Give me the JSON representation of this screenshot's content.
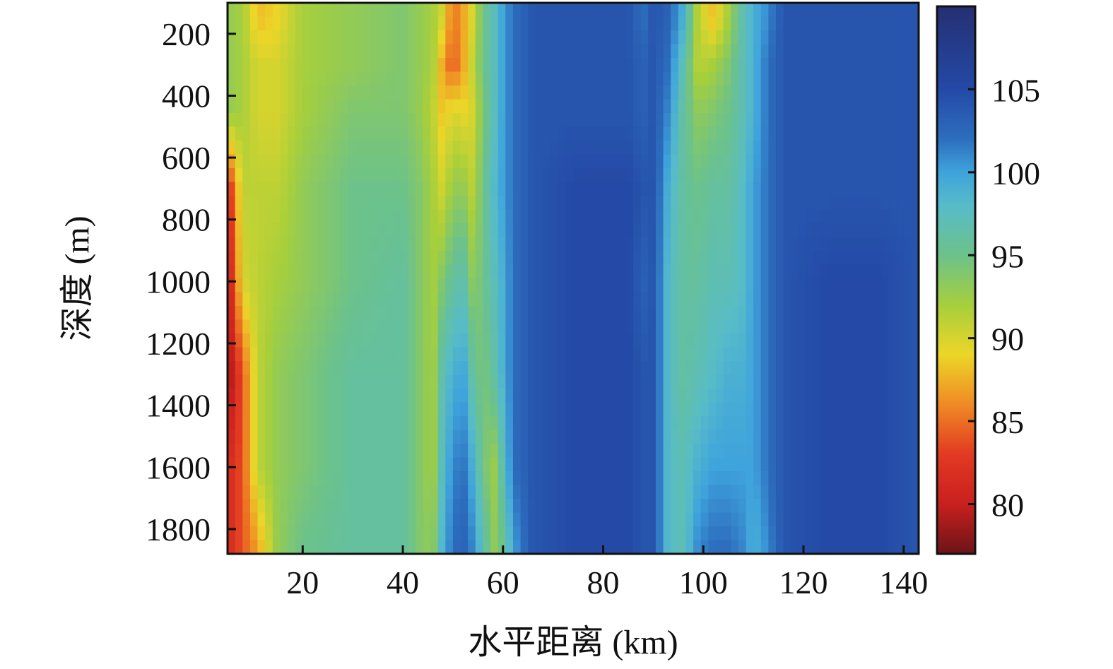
{
  "chart_data": {
    "type": "heatmap",
    "title": "",
    "xlabel": "水平距离 (km)",
    "ylabel": "深度 (m)",
    "xlim": [
      5,
      143
    ],
    "ylim": [
      100,
      1880
    ],
    "y_reversed": true,
    "xticks": [
      20,
      40,
      60,
      80,
      100,
      120,
      140
    ],
    "yticks": [
      200,
      400,
      600,
      800,
      1000,
      1200,
      1400,
      1600,
      1800
    ],
    "colorbar": {
      "min": 77,
      "max": 110,
      "ticks": [
        80,
        85,
        90,
        95,
        100,
        105
      ],
      "colormap": "jet-reversed",
      "stops": [
        {
          "v": 77,
          "c": "#6b1418"
        },
        {
          "v": 80,
          "c": "#c8201e"
        },
        {
          "v": 83,
          "c": "#e23a22"
        },
        {
          "v": 86,
          "c": "#ef8a24"
        },
        {
          "v": 89,
          "c": "#ecd628"
        },
        {
          "v": 92,
          "c": "#a6cf3c"
        },
        {
          "v": 95,
          "c": "#6cc28a"
        },
        {
          "v": 98,
          "c": "#57bcc8"
        },
        {
          "v": 100,
          "c": "#3fa3dc"
        },
        {
          "v": 102,
          "c": "#2d6ebe"
        },
        {
          "v": 105,
          "c": "#2449a6"
        },
        {
          "v": 110,
          "c": "#252f72"
        }
      ]
    },
    "profile_x": [
      5,
      8,
      11,
      15,
      20,
      30,
      40,
      43,
      46,
      48,
      50,
      52,
      54,
      56,
      58,
      60,
      62,
      66,
      75,
      85,
      88,
      90,
      93,
      96,
      99,
      102,
      105,
      108,
      110,
      113,
      116,
      125,
      135,
      143
    ],
    "profile_y": [
      150,
      300,
      450,
      700,
      1000,
      1300,
      1600,
      1850
    ],
    "values": [
      [
        93,
        92,
        88,
        89,
        92,
        93,
        94,
        93,
        92,
        90,
        85,
        87,
        90,
        95,
        97,
        100,
        102,
        104,
        104,
        104,
        102,
        104,
        103,
        99,
        91,
        88,
        92,
        97,
        99,
        101,
        104,
        104,
        104,
        104
      ],
      [
        93,
        92,
        90,
        90,
        92,
        93,
        94,
        93,
        92,
        87,
        84,
        87,
        91,
        95,
        97,
        100,
        102,
        104,
        104,
        104,
        103,
        104,
        102,
        97,
        91,
        92,
        94,
        97,
        99,
        102,
        104,
        104,
        104,
        104
      ],
      [
        93,
        92,
        90,
        90,
        92,
        94,
        94,
        93,
        91,
        88,
        90,
        89,
        90,
        94,
        97,
        100,
        102,
        104,
        104,
        104,
        103,
        104,
        101,
        96,
        93,
        94,
        95,
        97,
        99,
        102,
        104,
        104,
        104,
        104
      ],
      [
        81,
        91,
        91,
        91,
        93,
        95,
        95,
        94,
        92,
        90,
        93,
        93,
        91,
        95,
        98,
        100,
        102,
        104,
        105,
        105,
        104,
        104,
        99,
        96,
        95,
        96,
        96,
        98,
        100,
        102,
        104,
        104,
        104,
        104
      ],
      [
        79,
        90,
        91,
        92,
        93,
        95,
        96,
        94,
        92,
        94,
        96,
        97,
        93,
        95,
        97,
        99,
        102,
        104,
        105,
        105,
        103,
        104,
        98,
        96,
        96,
        97,
        97,
        98,
        100,
        102,
        104,
        105,
        105,
        104
      ],
      [
        78,
        84,
        91,
        93,
        94,
        96,
        96,
        94,
        92,
        97,
        99,
        100,
        96,
        94,
        96,
        99,
        102,
        104,
        105,
        105,
        104,
        104,
        98,
        96,
        97,
        98,
        99,
        99,
        100,
        102,
        104,
        105,
        105,
        104
      ],
      [
        81,
        84,
        91,
        93,
        94,
        96,
        96,
        94,
        92,
        98,
        101,
        102,
        99,
        95,
        92,
        97,
        102,
        104,
        105,
        105,
        104,
        104,
        98,
        97,
        99,
        100,
        100,
        100,
        100,
        102,
        104,
        105,
        105,
        104
      ],
      [
        81,
        84,
        87,
        93,
        95,
        96,
        96,
        94,
        93,
        99,
        102,
        103,
        101,
        97,
        93,
        95,
        100,
        104,
        105,
        105,
        104,
        104,
        98,
        97,
        101,
        102,
        102,
        101,
        99,
        101,
        104,
        105,
        105,
        104
      ]
    ]
  }
}
